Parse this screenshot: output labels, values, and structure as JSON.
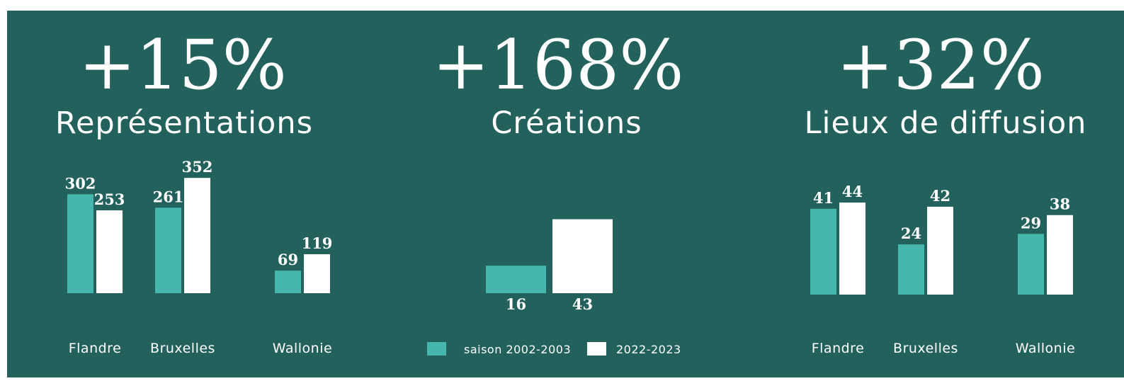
{
  "colors": {
    "background": "#23625c",
    "series_2002": "#46b7ad",
    "series_2022": "#ffffff"
  },
  "chart_data": [
    {
      "type": "bar",
      "headline": "+15%",
      "subtitle": "Représentations",
      "categories": [
        "Flandre",
        "Bruxelles",
        "Wallonie"
      ],
      "series": [
        {
          "values": [
            302,
            261,
            69
          ]
        },
        {
          "values": [
            253,
            352,
            119
          ]
        }
      ]
    },
    {
      "type": "bar",
      "headline": "+168%",
      "subtitle": "Créations",
      "categories": [
        ""
      ],
      "series": [
        {
          "values": [
            16
          ]
        },
        {
          "values": [
            43
          ]
        }
      ]
    },
    {
      "type": "bar",
      "headline": "+32%",
      "subtitle": "Lieux de diffusion",
      "categories": [
        "Flandre",
        "Bruxelles",
        "Wallonie"
      ],
      "series": [
        {
          "values": [
            41,
            24,
            29
          ]
        },
        {
          "values": [
            44,
            42,
            38
          ]
        }
      ]
    }
  ],
  "legend": [
    {
      "label": "saison 2002-2003",
      "color": "#46b7ad"
    },
    {
      "label": "2022-2023",
      "color": "#ffffff"
    }
  ]
}
